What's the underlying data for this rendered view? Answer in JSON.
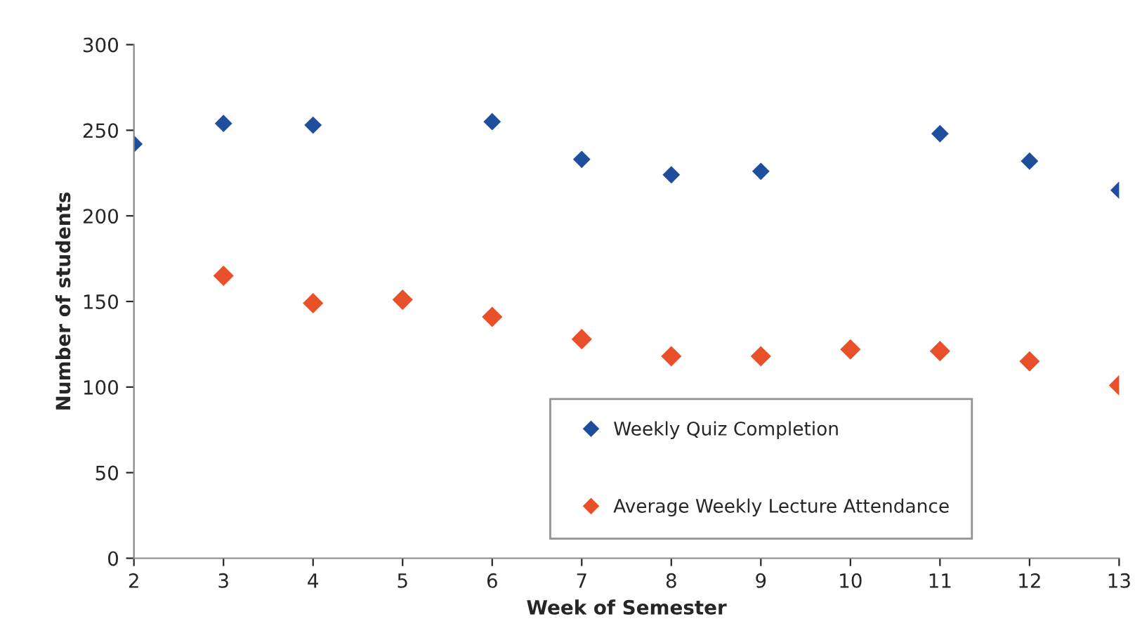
{
  "chart_data": {
    "type": "scatter",
    "xlabel": "Week of Semester",
    "ylabel": "Number of students",
    "series": [
      {
        "name": "Weekly Quiz Completion",
        "color": "#1f4e9c",
        "x": [
          2,
          3,
          4,
          6,
          7,
          8,
          9,
          11,
          12,
          13
        ],
        "values": [
          242,
          254,
          253,
          255,
          233,
          224,
          226,
          248,
          232,
          215
        ]
      },
      {
        "name": "Average Weekly Lecture Attendance",
        "color": "#e8502a",
        "x": [
          3,
          4,
          5,
          6,
          7,
          8,
          9,
          10,
          11,
          12,
          13
        ],
        "values": [
          165,
          149,
          151,
          141,
          128,
          118,
          118,
          122,
          121,
          115,
          101
        ]
      }
    ],
    "xlim": [
      2,
      13
    ],
    "xticks": [
      2,
      3,
      4,
      5,
      6,
      7,
      8,
      9,
      10,
      11,
      12,
      13
    ],
    "ylim": [
      0,
      300
    ],
    "yticks": [
      0,
      50,
      100,
      150,
      200,
      250,
      300
    ],
    "grid": false,
    "legend": "lower right",
    "marker": "diamond"
  }
}
